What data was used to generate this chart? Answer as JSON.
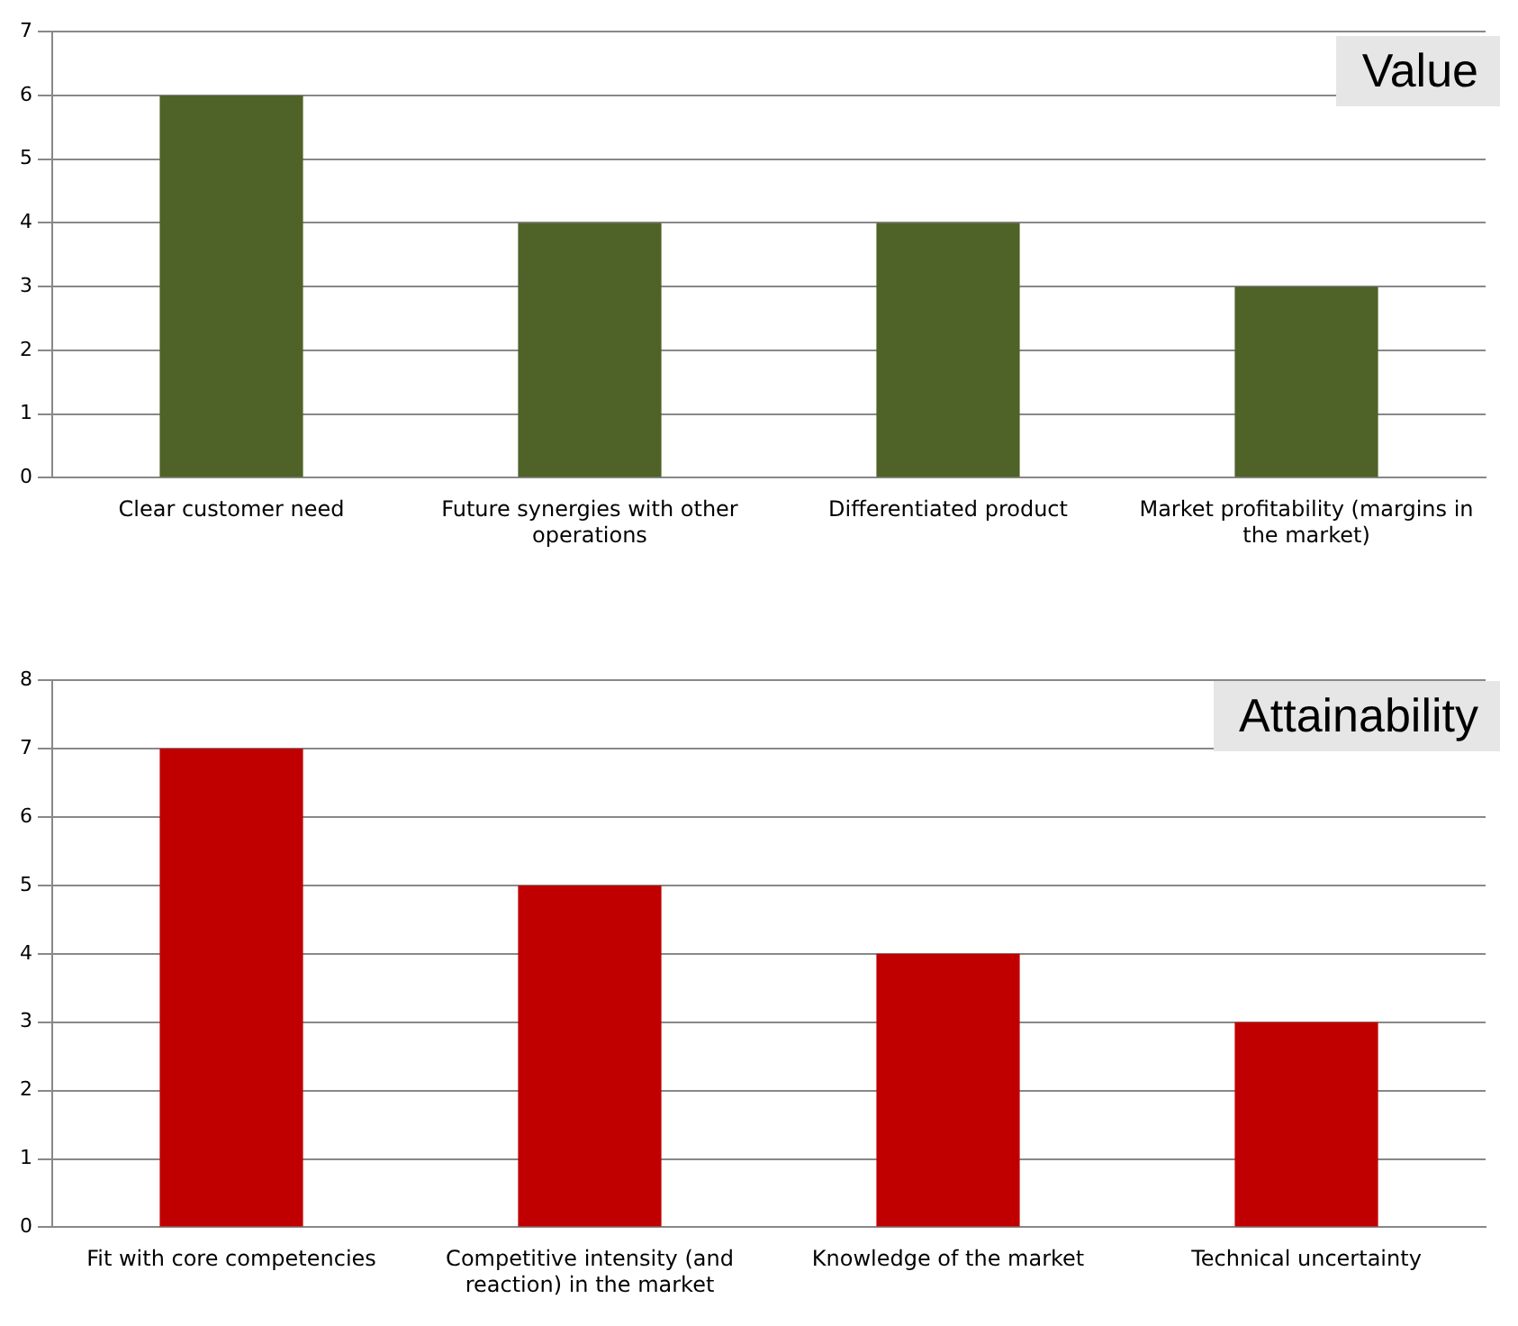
{
  "chart_data": [
    {
      "type": "bar",
      "title": "Value",
      "categories": [
        "Clear customer need",
        "Future synergies with other operations",
        "Differentiated product",
        "Market profitability (margins in the market)"
      ],
      "values": [
        6,
        4,
        4,
        3
      ],
      "color": "#4f6228",
      "ylim": [
        0,
        7
      ],
      "yticks": [
        0,
        1,
        2,
        3,
        4,
        5,
        6,
        7
      ],
      "grid": "y"
    },
    {
      "type": "bar",
      "title": "Attainability",
      "categories": [
        "Fit with core competencies",
        "Competitive intensity (and reaction) in the market",
        "Knowledge of the market",
        "Technical uncertainty"
      ],
      "values": [
        7,
        5,
        4,
        3
      ],
      "color": "#c00000",
      "ylim": [
        0,
        8
      ],
      "yticks": [
        0,
        1,
        2,
        3,
        4,
        5,
        6,
        7,
        8
      ],
      "grid": "y"
    }
  ]
}
